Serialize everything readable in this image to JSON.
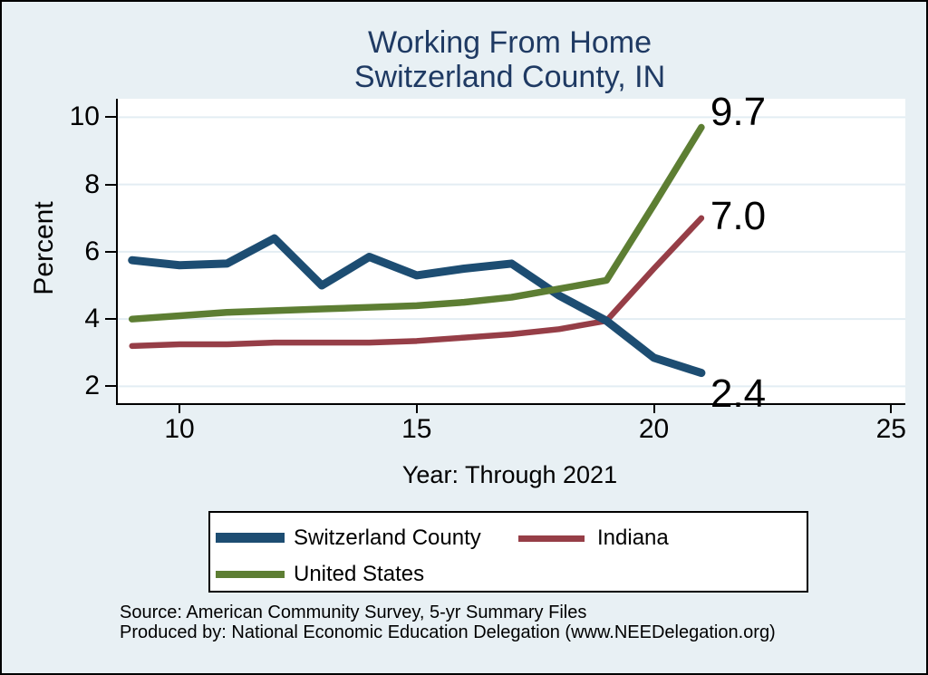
{
  "chart_data": {
    "type": "line",
    "title": "Working From Home — Switzerland County, IN",
    "title_lines": [
      "Working From Home",
      "Switzerland County, IN"
    ],
    "xlabel": "Year: Through 2021",
    "ylabel": "Percent",
    "x": [
      9,
      10,
      11,
      12,
      13,
      14,
      15,
      16,
      17,
      18,
      19,
      20,
      21
    ],
    "x_ticks": [
      10,
      15,
      20,
      25
    ],
    "y_ticks": [
      2,
      4,
      6,
      8,
      10
    ],
    "xlim": [
      8.7,
      25.3
    ],
    "ylim": [
      1.5,
      10.55
    ],
    "grid": "horizontal-only",
    "legend_position": "bottom",
    "series": [
      {
        "name": "Switzerland County",
        "color": "#1d4d72",
        "values": [
          5.75,
          5.6,
          5.65,
          6.4,
          5.0,
          5.85,
          5.3,
          5.5,
          5.65,
          4.7,
          3.95,
          2.85,
          2.4
        ],
        "end_label": "2.4"
      },
      {
        "name": "Indiana",
        "color": "#963e47",
        "values": [
          3.2,
          3.25,
          3.25,
          3.3,
          3.3,
          3.3,
          3.35,
          3.45,
          3.55,
          3.7,
          3.95,
          5.5,
          7.0
        ],
        "end_label": "7.0"
      },
      {
        "name": "United States",
        "color": "#5d7e33",
        "values": [
          4.0,
          4.1,
          4.2,
          4.25,
          4.3,
          4.35,
          4.4,
          4.5,
          4.65,
          4.9,
          5.15,
          7.4,
          9.7
        ],
        "end_label": "9.7"
      }
    ]
  },
  "footer": {
    "line1": "Source: American Community Survey, 5-yr Summary Files",
    "line2": "Produced by: National Economic Education Delegation (www.NEEDelegation.org)"
  },
  "colors": {
    "background": "#e8f0f4",
    "plot_background": "#ffffff",
    "gridline": "#e3edf3",
    "axis": "#000000",
    "title_text": "#1f3a63"
  }
}
